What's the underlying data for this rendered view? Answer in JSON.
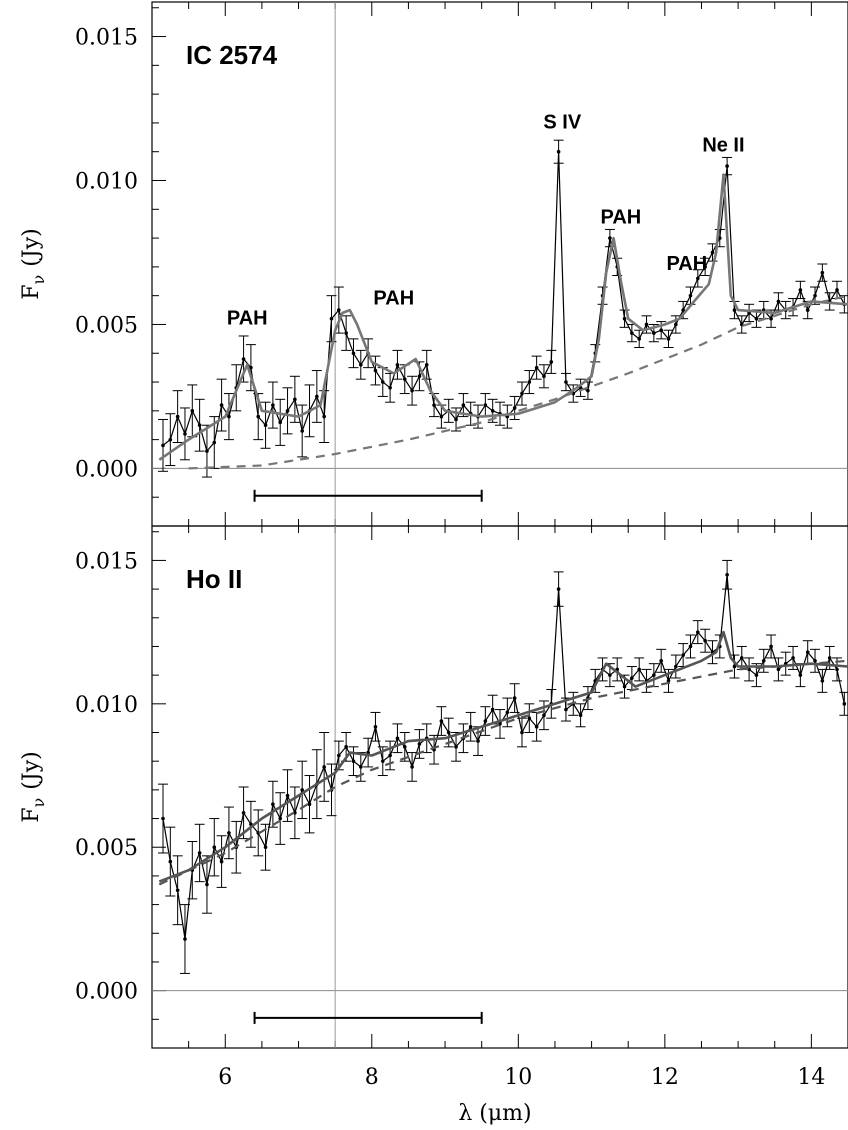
{
  "chart_data": [
    {
      "type": "line",
      "title": "IC 2574",
      "xlabel": "λ (μm)",
      "ylabel": "F",
      "ylabel_sub": "ν",
      "ylabel_unit": "(Jy)",
      "xlim": [
        5.0,
        14.5
      ],
      "ylim": [
        -0.002,
        0.0162
      ],
      "xticks": [
        6,
        8,
        10,
        12,
        14
      ],
      "xtick_labels": [
        "6",
        "8",
        "10",
        "12",
        "14"
      ],
      "yticks": [
        0.0,
        0.005,
        0.01,
        0.015
      ],
      "ytick_labels": [
        "0.000",
        "0.005",
        "0.010",
        "0.015"
      ],
      "annotations": [
        {
          "text": "PAH",
          "x": 6.3,
          "y": 0.005
        },
        {
          "text": "PAH",
          "x": 8.3,
          "y": 0.0057
        },
        {
          "text": "S IV",
          "x": 10.6,
          "y": 0.0118
        },
        {
          "text": "PAH",
          "x": 11.4,
          "y": 0.0085
        },
        {
          "text": "PAH",
          "x": 12.3,
          "y": 0.0069
        },
        {
          "text": "Ne II",
          "x": 12.8,
          "y": 0.011
        }
      ],
      "range_bar": {
        "x": [
          6.4,
          9.5
        ],
        "y": -0.00095
      },
      "vline_x": 7.5,
      "hline_y": 0.0,
      "series": [
        {
          "kind": "data_with_errors",
          "color": "#000000",
          "x": [
            5.15,
            5.25,
            5.35,
            5.45,
            5.55,
            5.65,
            5.75,
            5.85,
            5.95,
            6.05,
            6.15,
            6.25,
            6.35,
            6.45,
            6.55,
            6.65,
            6.75,
            6.85,
            6.95,
            7.05,
            7.15,
            7.25,
            7.35,
            7.45,
            7.55,
            7.65,
            7.75,
            7.85,
            7.95,
            8.05,
            8.15,
            8.25,
            8.35,
            8.45,
            8.55,
            8.65,
            8.75,
            8.85,
            8.95,
            9.05,
            9.15,
            9.25,
            9.35,
            9.45,
            9.55,
            9.65,
            9.75,
            9.85,
            9.95,
            10.05,
            10.15,
            10.25,
            10.35,
            10.45,
            10.55,
            10.65,
            10.75,
            10.85,
            10.95,
            11.05,
            11.15,
            11.25,
            11.35,
            11.45,
            11.55,
            11.65,
            11.75,
            11.85,
            11.95,
            12.05,
            12.15,
            12.25,
            12.35,
            12.45,
            12.55,
            12.65,
            12.75,
            12.85,
            12.95,
            13.05,
            13.15,
            13.25,
            13.35,
            13.45,
            13.55,
            13.65,
            13.75,
            13.85,
            13.95,
            14.05,
            14.15,
            14.25,
            14.35,
            14.45
          ],
          "y": [
            0.0008,
            0.001,
            0.0018,
            0.0012,
            0.002,
            0.0015,
            0.0006,
            0.0009,
            0.0022,
            0.0018,
            0.0028,
            0.0038,
            0.0035,
            0.0018,
            0.0015,
            0.0022,
            0.0016,
            0.002,
            0.0024,
            0.0013,
            0.002,
            0.0025,
            0.0018,
            0.0052,
            0.0055,
            0.0047,
            0.004,
            0.0036,
            0.004,
            0.0034,
            0.003,
            0.0028,
            0.0036,
            0.0031,
            0.0027,
            0.0032,
            0.0036,
            0.0022,
            0.0018,
            0.002,
            0.0017,
            0.0022,
            0.0019,
            0.0018,
            0.0022,
            0.002,
            0.0019,
            0.0018,
            0.0021,
            0.0026,
            0.003,
            0.0035,
            0.0032,
            0.0037,
            0.011,
            0.003,
            0.0026,
            0.0028,
            0.0027,
            0.004,
            0.006,
            0.008,
            0.007,
            0.0052,
            0.0047,
            0.0045,
            0.005,
            0.0047,
            0.0048,
            0.0045,
            0.005,
            0.0055,
            0.006,
            0.0066,
            0.007,
            0.0075,
            0.008,
            0.0105,
            0.0055,
            0.005,
            0.0054,
            0.0052,
            0.0055,
            0.0052,
            0.0058,
            0.0055,
            0.0056,
            0.0062,
            0.0055,
            0.006,
            0.0068,
            0.0058,
            0.0062,
            0.0057
          ],
          "err": [
            0.0009,
            0.0009,
            0.0009,
            0.0009,
            0.0009,
            0.0009,
            0.0009,
            0.0009,
            0.0009,
            0.0008,
            0.0008,
            0.0008,
            0.0008,
            0.0008,
            0.0008,
            0.0008,
            0.0008,
            0.0008,
            0.0008,
            0.0009,
            0.0009,
            0.0009,
            0.0009,
            0.0008,
            0.0008,
            0.0006,
            0.0005,
            0.0005,
            0.0005,
            0.0005,
            0.0005,
            0.0005,
            0.0005,
            0.0005,
            0.0005,
            0.0005,
            0.0005,
            0.0004,
            0.0004,
            0.0004,
            0.0004,
            0.0004,
            0.0004,
            0.0004,
            0.0004,
            0.0004,
            0.0004,
            0.0004,
            0.0004,
            0.0004,
            0.0004,
            0.0004,
            0.0004,
            0.0004,
            0.0004,
            0.0003,
            0.0003,
            0.0003,
            0.0003,
            0.0003,
            0.0003,
            0.0003,
            0.0003,
            0.0003,
            0.0003,
            0.0003,
            0.0003,
            0.0003,
            0.0003,
            0.0003,
            0.0003,
            0.0003,
            0.0003,
            0.0003,
            0.0003,
            0.0003,
            0.0003,
            0.0003,
            0.0003,
            0.0003,
            0.0003,
            0.0003,
            0.0003,
            0.0003,
            0.0003,
            0.0003,
            0.0003,
            0.0003,
            0.0003,
            0.0003,
            0.0003,
            0.0003,
            0.0003,
            0.0003
          ]
        },
        {
          "kind": "model",
          "color": "#777777",
          "x": [
            5.1,
            5.5,
            6.0,
            6.2,
            6.3,
            6.5,
            7.0,
            7.3,
            7.5,
            7.6,
            7.7,
            7.8,
            8.0,
            8.3,
            8.6,
            8.8,
            9.0,
            9.5,
            10.0,
            10.5,
            10.8,
            11.0,
            11.1,
            11.2,
            11.3,
            11.4,
            11.5,
            11.7,
            12.0,
            12.2,
            12.4,
            12.6,
            12.7,
            12.8,
            12.9,
            13.0,
            13.5,
            14.0,
            14.5
          ],
          "y": [
            0.0003,
            0.001,
            0.0018,
            0.003,
            0.0036,
            0.002,
            0.0018,
            0.0022,
            0.0048,
            0.0054,
            0.0055,
            0.005,
            0.0037,
            0.0033,
            0.0038,
            0.0027,
            0.002,
            0.0018,
            0.0019,
            0.0023,
            0.0028,
            0.0032,
            0.0045,
            0.0068,
            0.008,
            0.0065,
            0.0052,
            0.0048,
            0.005,
            0.0052,
            0.0058,
            0.0064,
            0.0075,
            0.0102,
            0.006,
            0.0055,
            0.0054,
            0.0058,
            0.0057
          ]
        },
        {
          "kind": "continuum",
          "color": "#777777",
          "x": [
            5.5,
            6.5,
            7.5,
            8.5,
            9.5,
            10.5,
            11.5,
            12.5,
            13.0,
            13.5,
            14.0,
            14.5
          ],
          "y": [
            0.0,
            0.0001,
            0.0005,
            0.001,
            0.0016,
            0.0024,
            0.0033,
            0.0043,
            0.0049,
            0.0053,
            0.0057,
            0.006
          ]
        }
      ]
    },
    {
      "type": "line",
      "title": "Ho II",
      "xlabel": "λ (μm)",
      "ylabel": "F",
      "ylabel_sub": "ν",
      "ylabel_unit": "(Jy)",
      "xlim": [
        5.0,
        14.5
      ],
      "ylim": [
        -0.002,
        0.0162
      ],
      "xticks": [
        6,
        8,
        10,
        12,
        14
      ],
      "xtick_labels": [
        "6",
        "8",
        "10",
        "12",
        "14"
      ],
      "yticks": [
        0.0,
        0.005,
        0.01,
        0.015
      ],
      "ytick_labels": [
        "0.000",
        "0.005",
        "0.010",
        "0.015"
      ],
      "annotations": [],
      "range_bar": {
        "x": [
          6.4,
          9.5
        ],
        "y": -0.00095
      },
      "vline_x": 7.5,
      "hline_y": 0.0,
      "series": [
        {
          "kind": "data_with_errors",
          "color": "#000000",
          "x": [
            5.15,
            5.25,
            5.35,
            5.45,
            5.55,
            5.65,
            5.75,
            5.85,
            5.95,
            6.05,
            6.15,
            6.25,
            6.35,
            6.45,
            6.55,
            6.65,
            6.75,
            6.85,
            6.95,
            7.05,
            7.15,
            7.25,
            7.35,
            7.45,
            7.55,
            7.65,
            7.75,
            7.85,
            7.95,
            8.05,
            8.15,
            8.25,
            8.35,
            8.45,
            8.55,
            8.65,
            8.75,
            8.85,
            8.95,
            9.05,
            9.15,
            9.25,
            9.35,
            9.45,
            9.55,
            9.65,
            9.75,
            9.85,
            9.95,
            10.05,
            10.15,
            10.25,
            10.35,
            10.45,
            10.55,
            10.65,
            10.75,
            10.85,
            10.95,
            11.05,
            11.15,
            11.25,
            11.35,
            11.45,
            11.55,
            11.65,
            11.75,
            11.85,
            11.95,
            12.05,
            12.15,
            12.25,
            12.35,
            12.45,
            12.55,
            12.65,
            12.75,
            12.85,
            12.95,
            13.05,
            13.15,
            13.25,
            13.35,
            13.45,
            13.55,
            13.65,
            13.75,
            13.85,
            13.95,
            14.05,
            14.15,
            14.25,
            14.35,
            14.45
          ],
          "y": [
            0.006,
            0.0045,
            0.0035,
            0.0018,
            0.0042,
            0.0048,
            0.0037,
            0.005,
            0.0045,
            0.0055,
            0.005,
            0.0062,
            0.0058,
            0.0055,
            0.005,
            0.0065,
            0.006,
            0.0068,
            0.0062,
            0.007,
            0.0065,
            0.0072,
            0.0078,
            0.007,
            0.0082,
            0.0085,
            0.008,
            0.0078,
            0.0083,
            0.0092,
            0.008,
            0.0082,
            0.0088,
            0.0085,
            0.0078,
            0.0086,
            0.0088,
            0.0084,
            0.0094,
            0.009,
            0.0085,
            0.0088,
            0.0092,
            0.0087,
            0.0094,
            0.0098,
            0.0093,
            0.0097,
            0.0102,
            0.009,
            0.0095,
            0.0092,
            0.0096,
            0.01,
            0.014,
            0.0098,
            0.01,
            0.0096,
            0.0102,
            0.0108,
            0.0112,
            0.011,
            0.0112,
            0.0106,
            0.0109,
            0.0112,
            0.0108,
            0.011,
            0.0115,
            0.0108,
            0.0113,
            0.0117,
            0.012,
            0.0125,
            0.0122,
            0.0118,
            0.012,
            0.0145,
            0.0113,
            0.0116,
            0.0112,
            0.011,
            0.0115,
            0.012,
            0.0112,
            0.0114,
            0.0116,
            0.011,
            0.0118,
            0.0115,
            0.0108,
            0.0116,
            0.0112,
            0.01
          ],
          "err": [
            0.0012,
            0.0012,
            0.0012,
            0.0012,
            0.001,
            0.001,
            0.001,
            0.001,
            0.0009,
            0.0009,
            0.0009,
            0.0009,
            0.0008,
            0.0008,
            0.0008,
            0.0008,
            0.0009,
            0.0009,
            0.0009,
            0.001,
            0.001,
            0.0012,
            0.0012,
            0.0009,
            0.0005,
            0.0005,
            0.0005,
            0.0005,
            0.0005,
            0.0005,
            0.0005,
            0.0005,
            0.0005,
            0.0005,
            0.0005,
            0.0005,
            0.0005,
            0.0005,
            0.0005,
            0.0005,
            0.0005,
            0.0005,
            0.0005,
            0.0005,
            0.0005,
            0.0005,
            0.0005,
            0.0005,
            0.0005,
            0.0005,
            0.0005,
            0.0005,
            0.0005,
            0.0005,
            0.0006,
            0.0004,
            0.0004,
            0.0004,
            0.0004,
            0.0004,
            0.0004,
            0.0004,
            0.0004,
            0.0004,
            0.0004,
            0.0004,
            0.0004,
            0.0004,
            0.0004,
            0.0004,
            0.0004,
            0.0004,
            0.0004,
            0.0004,
            0.0004,
            0.0004,
            0.0004,
            0.0005,
            0.0004,
            0.0004,
            0.0004,
            0.0004,
            0.0004,
            0.0004,
            0.0004,
            0.0004,
            0.0004,
            0.0004,
            0.0004,
            0.0004,
            0.0004,
            0.0004,
            0.0004,
            0.0004
          ]
        },
        {
          "kind": "model",
          "color": "#555555",
          "x": [
            5.1,
            5.5,
            6.0,
            6.5,
            7.0,
            7.5,
            7.7,
            8.0,
            8.5,
            9.0,
            9.5,
            10.0,
            10.5,
            11.0,
            11.2,
            11.4,
            11.6,
            12.0,
            12.5,
            12.7,
            12.8,
            12.9,
            13.0,
            13.5,
            14.0,
            14.5
          ],
          "y": [
            0.0038,
            0.0042,
            0.005,
            0.006,
            0.0068,
            0.0076,
            0.0083,
            0.0082,
            0.0087,
            0.0088,
            0.0092,
            0.0096,
            0.01,
            0.0104,
            0.0114,
            0.011,
            0.0106,
            0.011,
            0.0115,
            0.0118,
            0.0125,
            0.0116,
            0.0113,
            0.0113,
            0.0114,
            0.0113
          ]
        },
        {
          "kind": "continuum",
          "color": "#555555",
          "x": [
            5.1,
            6.0,
            7.0,
            7.5,
            8.0,
            9.0,
            10.0,
            11.0,
            12.0,
            13.0,
            14.0,
            14.5
          ],
          "y": [
            0.0037,
            0.0048,
            0.0063,
            0.0071,
            0.0077,
            0.0086,
            0.0095,
            0.0102,
            0.0107,
            0.0112,
            0.0114,
            0.0115
          ]
        }
      ]
    }
  ]
}
